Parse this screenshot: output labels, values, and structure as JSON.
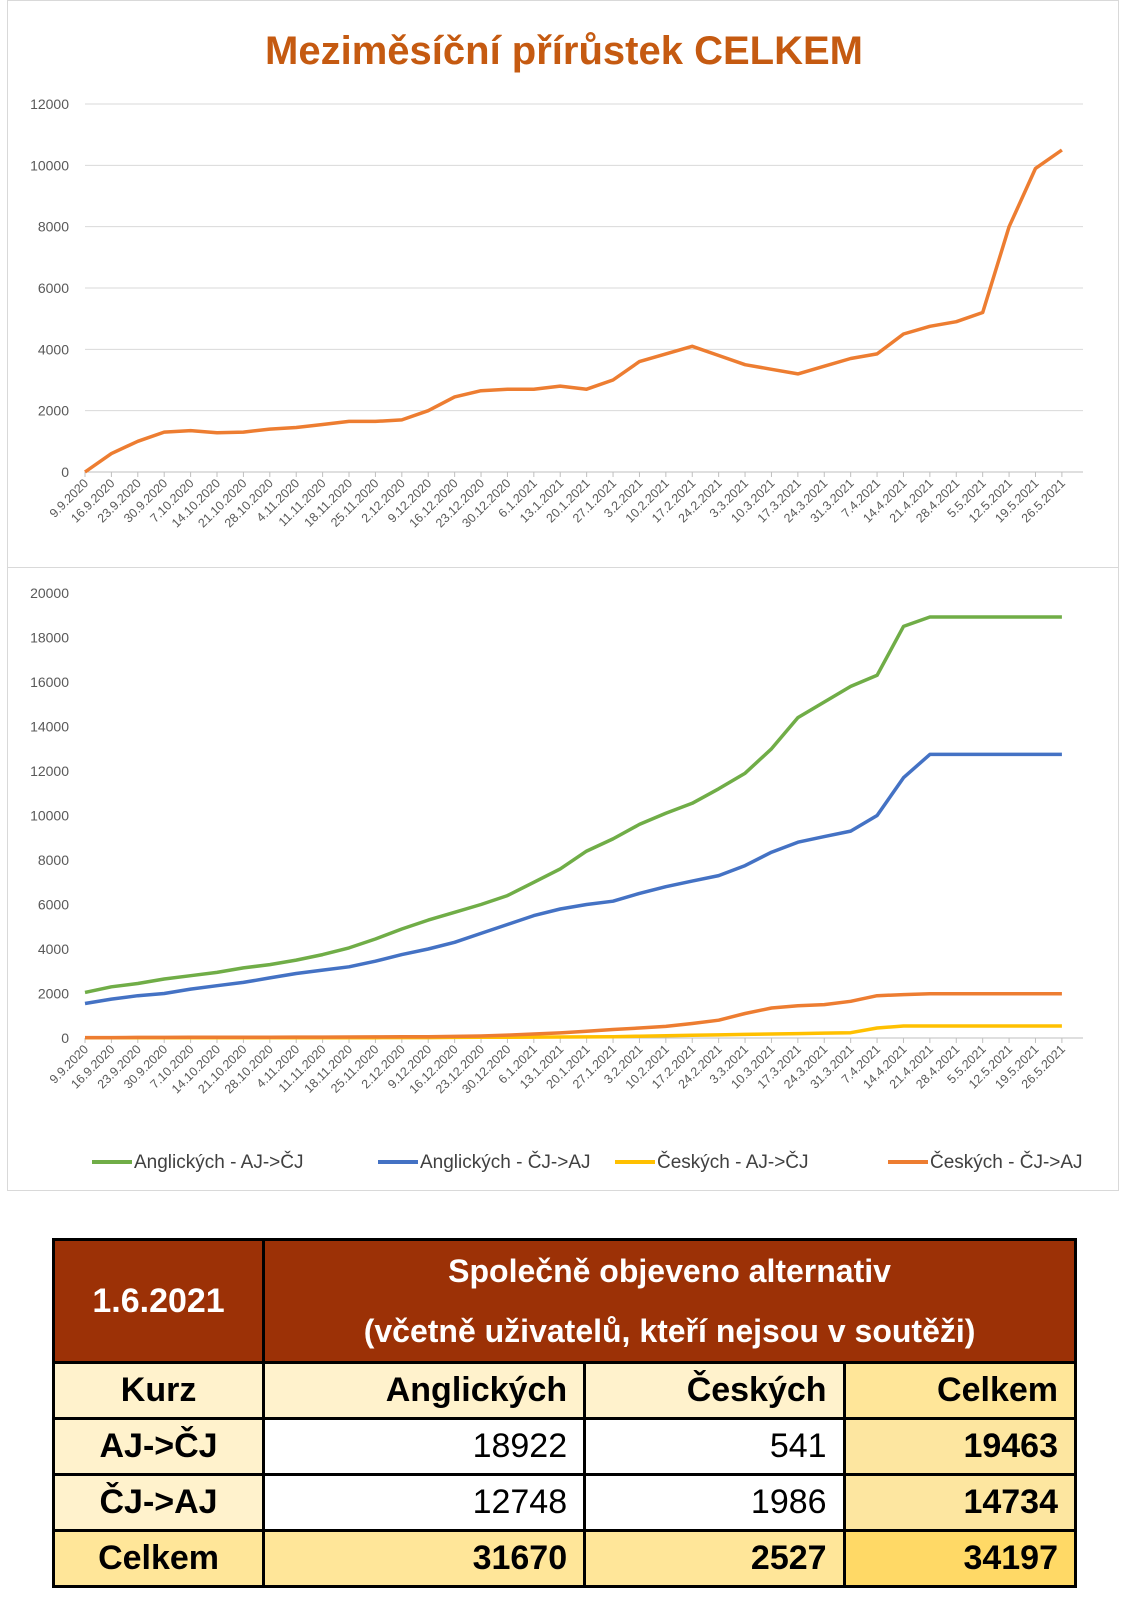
{
  "chart_data": [
    {
      "type": "line",
      "title": "Meziměsíční přírůstek CELKEM",
      "ylim": [
        0,
        12000
      ],
      "yticks": [
        0,
        2000,
        4000,
        6000,
        8000,
        10000,
        12000
      ],
      "x_tick_labels": [
        "9.9.2020",
        "16.9.2020",
        "23.9.2020",
        "30.9.2020",
        "7.10.2020",
        "14.10.2020",
        "21.10.2020",
        "28.10.2020",
        "4.11.2020",
        "11.11.2020",
        "18.11.2020",
        "25.11.2020",
        "2.12.2020",
        "9.12.2020",
        "16.12.2020",
        "23.12.2020",
        "30.12.2020",
        "6.1.2021",
        "13.1.2021",
        "20.1.2021",
        "27.1.2021",
        "3.2.2021",
        "10.2.2021",
        "17.2.2021",
        "24.2.2021",
        "3.3.2021",
        "10.3.2021",
        "17.3.2021",
        "24.3.2021",
        "31.3.2021",
        "7.4.2021",
        "14.4.2021",
        "21.4.2021",
        "28.4.2021",
        "5.5.2021",
        "12.5.2021",
        "19.5.2021",
        "26.5.2021"
      ],
      "grid": true,
      "color": "#ed7d31",
      "series": [
        {
          "values": [
            0,
            600,
            1000,
            1300,
            1350,
            1280,
            1300,
            1400,
            1450,
            1550,
            1650,
            1650,
            1700,
            2000,
            2450,
            2650,
            2700,
            2700,
            2800,
            2700,
            3000,
            3600,
            3850,
            4100,
            3800,
            3500,
            3350,
            3200,
            3450,
            3700,
            3850,
            4500,
            4750,
            4900,
            5200,
            8000,
            9900,
            10500
          ]
        }
      ]
    },
    {
      "type": "line",
      "ylim": [
        0,
        20000
      ],
      "yticks": [
        0,
        2000,
        4000,
        6000,
        8000,
        10000,
        12000,
        14000,
        16000,
        18000,
        20000
      ],
      "x_tick_labels": [
        "9.9.2020",
        "16.9.2020",
        "23.9.2020",
        "30.9.2020",
        "7.10.2020",
        "14.10.2020",
        "21.10.2020",
        "28.10.2020",
        "4.11.2020",
        "11.11.2020",
        "18.11.2020",
        "25.11.2020",
        "2.12.2020",
        "9.12.2020",
        "16.12.2020",
        "23.12.2020",
        "30.12.2020",
        "6.1.2021",
        "13.1.2021",
        "20.1.2021",
        "27.1.2021",
        "3.2.2021",
        "10.2.2021",
        "17.2.2021",
        "24.2.2021",
        "3.3.2021",
        "10.3.2021",
        "17.3.2021",
        "24.3.2021",
        "31.3.2021",
        "7.4.2021",
        "14.4.2021",
        "21.4.2021",
        "28.4.2021",
        "5.5.2021",
        "12.5.2021",
        "19.5.2021",
        "26.5.2021"
      ],
      "grid": false,
      "legend_position": "bottom",
      "series": [
        {
          "name": "Anglických - AJ->ČJ",
          "color": "#70ad47",
          "values": [
            2050,
            2300,
            2450,
            2650,
            2800,
            2950,
            3150,
            3300,
            3500,
            3750,
            4050,
            4450,
            4900,
            5300,
            5650,
            6000,
            6400,
            7000,
            7600,
            8400,
            8950,
            9600,
            10100,
            10550,
            11200,
            11900,
            13000,
            14400,
            15100,
            15800,
            16300,
            18500,
            18922,
            18922,
            18922,
            18922,
            18922,
            18922
          ]
        },
        {
          "name": "Anglických - ČJ->AJ",
          "color": "#4472c4",
          "values": [
            1550,
            1750,
            1900,
            2000,
            2200,
            2350,
            2500,
            2700,
            2900,
            3050,
            3200,
            3450,
            3750,
            4000,
            4300,
            4700,
            5100,
            5500,
            5800,
            6000,
            6150,
            6500,
            6800,
            7050,
            7300,
            7750,
            8350,
            8800,
            9050,
            9300,
            10000,
            11700,
            12748,
            12748,
            12748,
            12748,
            12748,
            12748
          ]
        },
        {
          "name": "Českých - AJ->ČJ",
          "color": "#ffc000",
          "values": [
            10,
            10,
            10,
            10,
            10,
            10,
            10,
            10,
            10,
            10,
            15,
            15,
            20,
            20,
            25,
            30,
            35,
            40,
            45,
            50,
            60,
            80,
            100,
            120,
            140,
            160,
            180,
            200,
            220,
            240,
            450,
            540,
            541,
            541,
            541,
            541,
            541,
            541
          ]
        },
        {
          "name": "Českých - ČJ->AJ",
          "color": "#ed7d31",
          "values": [
            20,
            20,
            25,
            25,
            30,
            30,
            35,
            35,
            40,
            40,
            45,
            50,
            55,
            60,
            70,
            90,
            130,
            180,
            230,
            300,
            380,
            450,
            520,
            650,
            800,
            1100,
            1350,
            1450,
            1500,
            1650,
            1900,
            1950,
            1986,
            1986,
            1986,
            1986,
            1986,
            1986
          ]
        }
      ]
    }
  ],
  "table": {
    "date": "1.6.2021",
    "title_line1": "Společně objeveno alternativ",
    "title_line2": "(včetně uživatelů, kteří nejsou v soutěži)",
    "col_kurz": "Kurz",
    "col_anglickych": "Anglických",
    "col_ceskych": "Českých",
    "col_celkem": "Celkem",
    "rows": [
      {
        "label": "AJ->ČJ",
        "anglickych": "18922",
        "ceskych": "541",
        "celkem": "19463"
      },
      {
        "label": "ČJ->AJ",
        "anglickych": "12748",
        "ceskych": "1986",
        "celkem": "14734"
      },
      {
        "label": "Celkem",
        "anglickych": "31670",
        "ceskych": "2527",
        "celkem": "34197"
      }
    ]
  }
}
